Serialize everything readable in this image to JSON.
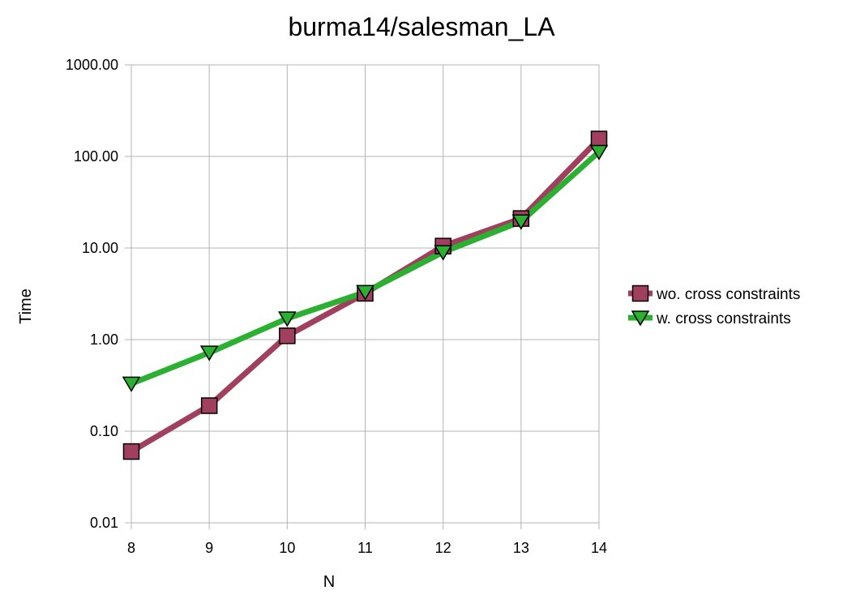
{
  "chart_data": {
    "type": "line",
    "title": "burma14/salesman_LA",
    "xlabel": "N",
    "ylabel": "Time",
    "x": [
      8,
      9,
      10,
      11,
      12,
      13,
      14
    ],
    "x_tick_labels": [
      "8",
      "9",
      "10",
      "11",
      "12",
      "13",
      "14"
    ],
    "y_scale": "log",
    "ylim": [
      0.01,
      1000
    ],
    "y_ticks": [
      0.01,
      0.1,
      1,
      10,
      100,
      1000
    ],
    "y_tick_labels": [
      "0.01",
      "0.10",
      "1.00",
      "10.00",
      "100.00",
      "1000.00"
    ],
    "grid": true,
    "legend_position": "right",
    "series": [
      {
        "name": "wo. cross constraints",
        "values": [
          0.06,
          0.19,
          1.1,
          3.2,
          10.5,
          21,
          155
        ],
        "color": "#a1405e",
        "marker": "square"
      },
      {
        "name": "w. cross constraints",
        "values": [
          0.33,
          0.72,
          1.7,
          3.3,
          9,
          19.5,
          112
        ],
        "color": "#2bb031",
        "marker": "triangle-down"
      }
    ]
  }
}
